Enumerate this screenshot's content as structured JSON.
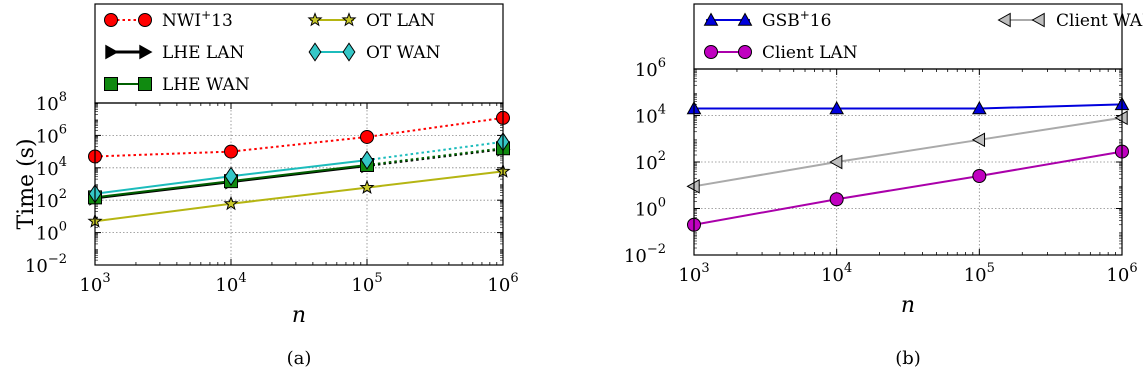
{
  "figure": {
    "panels": [
      {
        "caption": "(a)",
        "xlabel": "n",
        "ylabel": "Time (s)"
      },
      {
        "caption": "(b)",
        "xlabel": "n",
        "ylabel": ""
      }
    ]
  },
  "chart_data": [
    {
      "type": "line",
      "title": "",
      "caption": "(a)",
      "xlabel": "n",
      "ylabel": "Time (s)",
      "xscale": "log",
      "yscale": "log",
      "xlim": [
        1000,
        1000000
      ],
      "ylim": [
        0.01,
        100000000
      ],
      "x": [
        1000,
        10000,
        100000,
        1000000
      ],
      "x_ticks": [
        1000,
        10000,
        100000,
        1000000
      ],
      "y_ticks": [
        0.01,
        1,
        100,
        10000,
        1000000,
        100000000
      ],
      "x_tick_labels": [
        [
          "10",
          "3"
        ],
        [
          "10",
          "4"
        ],
        [
          "10",
          "5"
        ],
        [
          "10",
          "6"
        ]
      ],
      "y_tick_labels": [
        [
          "10",
          "−2"
        ],
        [
          "10",
          "0"
        ],
        [
          "10",
          "2"
        ],
        [
          "10",
          "4"
        ],
        [
          "10",
          "6"
        ],
        [
          "10",
          "8"
        ]
      ],
      "grid": true,
      "legend_position": "top",
      "series": [
        {
          "name": "NWI",
          "name_sup": "+",
          "name_tail": "13",
          "color": "#ff0000",
          "marker_fill": "#ff0000",
          "marker": "circle",
          "linestyle": "dotted",
          "values": [
            50000,
            100000,
            800000,
            12000000
          ]
        },
        {
          "name": "LHE LAN",
          "color": "#000000",
          "marker_fill": "#000000",
          "marker": "triangle-right",
          "linestyle": "solid",
          "values": [
            130,
            1300,
            13000,
            140000
          ],
          "extrapolated_from": 2
        },
        {
          "name": "LHE WAN",
          "color": "#005f00",
          "marker_fill": "#108a10",
          "marker": "square",
          "linestyle": "solid",
          "values": [
            150,
            1500,
            15000,
            160000
          ],
          "extrapolated_from": 2
        },
        {
          "name": "OT LAN",
          "color": "#b5b512",
          "marker_fill": "#c8c82a",
          "marker": "star",
          "linestyle": "solid",
          "values": [
            5,
            60,
            600,
            6000
          ]
        },
        {
          "name": "OT WAN",
          "color": "#1cbcbc",
          "marker_fill": "#34c7c7",
          "marker": "diamond",
          "linestyle": "solid",
          "values": [
            250,
            3000,
            30000,
            400000
          ],
          "extrapolated_from": 2
        }
      ]
    },
    {
      "type": "line",
      "title": "",
      "caption": "(b)",
      "xlabel": "n",
      "ylabel": "",
      "xscale": "log",
      "yscale": "log",
      "xlim": [
        1000,
        1000000
      ],
      "ylim": [
        0.01,
        1000000
      ],
      "x": [
        1000,
        10000,
        100000,
        1000000
      ],
      "x_ticks": [
        1000,
        10000,
        100000,
        1000000
      ],
      "y_ticks": [
        0.01,
        1,
        100,
        10000,
        1000000
      ],
      "x_tick_labels": [
        [
          "10",
          "3"
        ],
        [
          "10",
          "4"
        ],
        [
          "10",
          "5"
        ],
        [
          "10",
          "6"
        ]
      ],
      "y_tick_labels": [
        [
          "10",
          "−2"
        ],
        [
          "10",
          "0"
        ],
        [
          "10",
          "2"
        ],
        [
          "10",
          "4"
        ],
        [
          "10",
          "6"
        ]
      ],
      "grid": true,
      "legend_position": "top",
      "series": [
        {
          "name": "GSB",
          "name_sup": "+",
          "name_tail": "16",
          "color": "#0000dd",
          "marker_fill": "#0000dd",
          "marker": "triangle-up",
          "linestyle": "solid",
          "values": [
            20000,
            20000,
            20000,
            30000
          ]
        },
        {
          "name": "Client LAN",
          "color": "#aa00aa",
          "marker_fill": "#c000c0",
          "marker": "circle",
          "linestyle": "solid",
          "values": [
            0.2,
            2.5,
            25,
            280
          ]
        },
        {
          "name": "Client WAN",
          "color": "#aaaaaa",
          "marker_fill": "#bdbdbd",
          "marker": "triangle-left",
          "linestyle": "solid",
          "values": [
            9,
            100,
            900,
            8000
          ]
        }
      ]
    }
  ]
}
